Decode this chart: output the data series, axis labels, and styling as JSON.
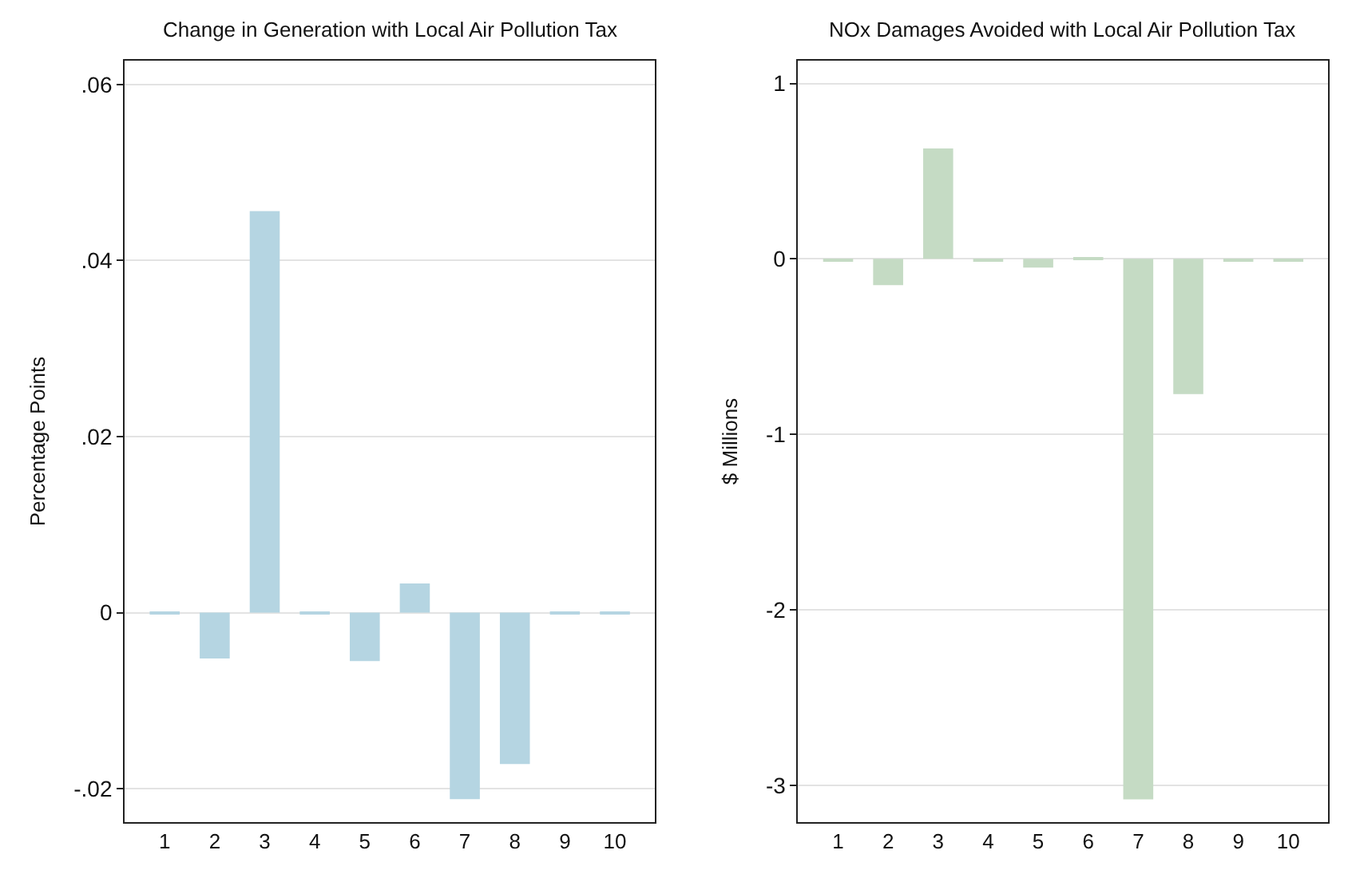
{
  "chart_data": [
    {
      "type": "bar",
      "title": "Change in Generation with Local Air Pollution Tax",
      "ylabel": "Percentage Points",
      "categories": [
        "1",
        "2",
        "3",
        "4",
        "5",
        "6",
        "7",
        "8",
        "9",
        "10"
      ],
      "values": [
        -0.0002,
        -0.0052,
        0.0456,
        -0.0001,
        -0.0055,
        0.0033,
        -0.0212,
        -0.0172,
        -0.0002,
        -0.0002
      ],
      "color": "#b5d5e2",
      "ylim": [
        -0.0238,
        0.0627
      ],
      "yticks": [
        {
          "value": -0.02,
          "label": "-.02"
        },
        0,
        {
          "value": 0.02,
          "label": ".02"
        },
        {
          "value": 0.04,
          "label": ".04"
        },
        {
          "value": 0.06,
          "label": ".06"
        }
      ],
      "grid": "y"
    },
    {
      "type": "bar",
      "title": "NOx Damages Avoided with Local Air Pollution Tax",
      "ylabel": "$ Millions",
      "categories": [
        "1",
        "2",
        "3",
        "4",
        "5",
        "6",
        "7",
        "8",
        "9",
        "10"
      ],
      "values": [
        -0.01,
        -0.15,
        0.63,
        -0.01,
        -0.05,
        0.01,
        -3.08,
        -0.77,
        -0.01,
        -0.01
      ],
      "color": "#c5dbc4",
      "ylim": [
        -3.21,
        1.13
      ],
      "yticks": [
        -3,
        -2,
        -1,
        0,
        1
      ],
      "grid": "y"
    }
  ]
}
